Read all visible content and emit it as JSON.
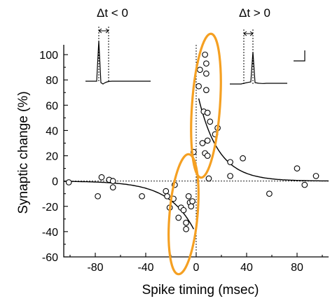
{
  "chart_data": {
    "type": "scatter",
    "xlabel": "Spike timing (msec)",
    "ylabel": "Synaptic change (%)",
    "xlim": [
      -105,
      105
    ],
    "ylim": [
      -60,
      110
    ],
    "xticks": [
      -80,
      -40,
      0,
      40,
      80
    ],
    "yticks": [
      -60,
      -40,
      -20,
      0,
      20,
      40,
      60,
      80,
      100
    ],
    "inset_labels": {
      "negative": "Δt < 0",
      "positive": "Δt > 0"
    },
    "highlight_color": "#F5A022",
    "points": [
      {
        "x": -101,
        "y": -1
      },
      {
        "x": -78,
        "y": -12
      },
      {
        "x": -75,
        "y": 3
      },
      {
        "x": -69,
        "y": 1
      },
      {
        "x": -66,
        "y": 0
      },
      {
        "x": -66,
        "y": -5
      },
      {
        "x": -43,
        "y": -12
      },
      {
        "x": -24,
        "y": -8
      },
      {
        "x": -23,
        "y": -12
      },
      {
        "x": -21,
        "y": -21
      },
      {
        "x": -18,
        "y": -14
      },
      {
        "x": -17,
        "y": -3
      },
      {
        "x": -14,
        "y": -29
      },
      {
        "x": -12,
        "y": -21
      },
      {
        "x": -10,
        "y": -23
      },
      {
        "x": -8,
        "y": -38
      },
      {
        "x": -8,
        "y": -33
      },
      {
        "x": -6,
        "y": -12
      },
      {
        "x": -5,
        "y": -17
      },
      {
        "x": -4,
        "y": -20
      },
      {
        "x": -3,
        "y": -16
      },
      {
        "x": -2,
        "y": 23
      },
      {
        "x": 2,
        "y": 75
      },
      {
        "x": 3,
        "y": 88
      },
      {
        "x": 5,
        "y": 30
      },
      {
        "x": 6,
        "y": 55
      },
      {
        "x": 7,
        "y": 100
      },
      {
        "x": 7,
        "y": 22
      },
      {
        "x": 8,
        "y": 93
      },
      {
        "x": 8,
        "y": 85
      },
      {
        "x": 8,
        "y": 72
      },
      {
        "x": 9,
        "y": 54
      },
      {
        "x": 9,
        "y": 32
      },
      {
        "x": 9,
        "y": 20
      },
      {
        "x": 10,
        "y": 2
      },
      {
        "x": 11,
        "y": 47
      },
      {
        "x": 15,
        "y": 37
      },
      {
        "x": 17,
        "y": 42
      },
      {
        "x": 27,
        "y": 15
      },
      {
        "x": 27,
        "y": 4
      },
      {
        "x": 37,
        "y": 18
      },
      {
        "x": 58,
        "y": -10
      },
      {
        "x": 80,
        "y": 10
      },
      {
        "x": 86,
        "y": -3
      },
      {
        "x": 95,
        "y": 4
      }
    ],
    "fit_curves": [
      {
        "domain": [
          -105,
          -2
        ],
        "amplitude": -42,
        "tau": 20
      },
      {
        "domain": [
          2,
          105
        ],
        "amplitude": 74,
        "tau": 16
      }
    ]
  }
}
